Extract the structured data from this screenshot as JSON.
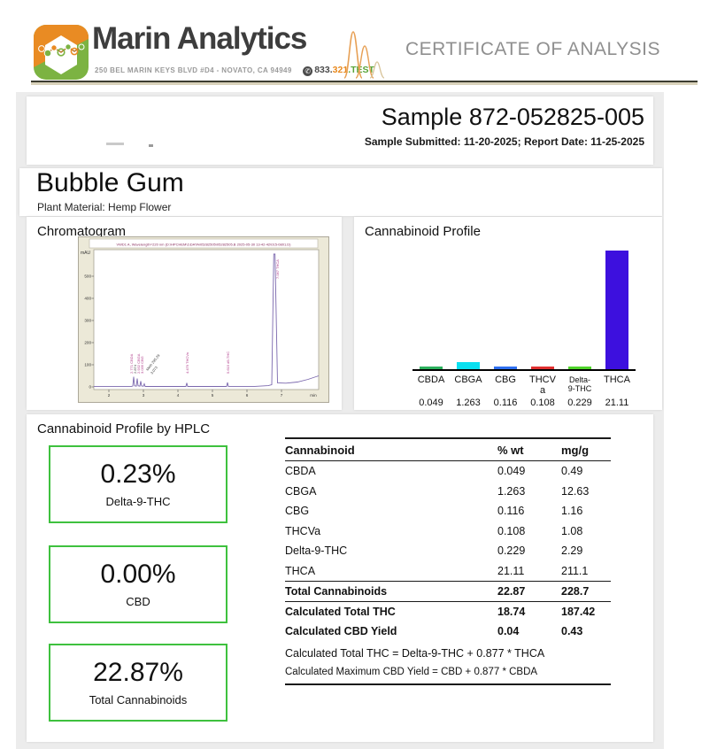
{
  "header": {
    "brand": "Marin Analytics",
    "address": "250 BEL MARIN KEYS BLVD #D4 - NOVATO, CA 94949",
    "phone": {
      "part1": "833.",
      "part2": "321",
      "part3": ".TEST"
    },
    "title": "CERTIFICATE OF ANALYSIS"
  },
  "sample": {
    "title": "Sample 872-052825-005",
    "meta": "Sample Submitted: 11-20-2025; Report Date: 11-25-2025"
  },
  "product": {
    "name": "Bubble Gum",
    "material": "Plant Material: Hemp Flower"
  },
  "chromatogram": {
    "section_title": "Chromatogram",
    "window_title": "VWD1 A, Wavelength=220 nm (D:\\HPCHEM\\1\\DATA\\05282505\\05282505.B 2025-05-30 13-42-42\\015-0801.D)",
    "y_label": "mAU",
    "y_ticks": [
      "500",
      "400",
      "300",
      "200",
      "100",
      "0"
    ],
    "x_ticks": [
      "2",
      "3",
      "4",
      "5",
      "6",
      "7"
    ],
    "x_unit": "min",
    "peak_labels": {
      "p1": "2.771 CBDA",
      "p2": "2.874",
      "p3": "2.932 CBGA",
      "p4": "3.035 CBG",
      "p5": "Meth 295.29",
      "p6": "3.073",
      "p7": "4.479 THCVa",
      "p8": "5.615 d9-THC",
      "p9": "7.067 THCA"
    }
  },
  "profile": {
    "section_title": "Cannabinoid Profile"
  },
  "chart_data": {
    "type": "bar",
    "title": "Cannabinoid Profile",
    "categories": [
      "CBDA",
      "CBGA",
      "CBG",
      "THCVa",
      "Delta-9-THC",
      "THCA"
    ],
    "values": [
      0.049,
      1.263,
      0.116,
      0.108,
      0.229,
      21.11
    ],
    "ylim": [
      0,
      21.11
    ],
    "xlabel": "",
    "ylabel": "% wt",
    "grid": false,
    "legend": false,
    "bar_colors": [
      "#2bb05c",
      "#0ae0f0",
      "#2e6ff0",
      "#e03030",
      "#4fd42a",
      "#3d10de"
    ],
    "display_labels": [
      "CBDA",
      "CBGA",
      "CBG",
      "THCV\na",
      "Delta-\n9-THC",
      "THCA"
    ],
    "display_values": [
      "0.049",
      "1.263",
      "0.116",
      "0.108",
      "0.229",
      "21.11"
    ]
  },
  "hplc": {
    "section_title": "Cannabinoid Profile by HPLC",
    "boxes": [
      {
        "value": "0.23%",
        "label": "Delta-9-THC"
      },
      {
        "value": "0.00%",
        "label": "CBD"
      },
      {
        "value": "22.87%",
        "label": "Total Cannabinoids"
      }
    ],
    "table": {
      "headers": [
        "Cannabinoid",
        "% wt",
        "mg/g"
      ],
      "rows": [
        {
          "name": "CBDA",
          "wt": "0.049",
          "mg": "0.49"
        },
        {
          "name": "CBGA",
          "wt": "1.263",
          "mg": "12.63"
        },
        {
          "name": "CBG",
          "wt": "0.116",
          "mg": "1.16"
        },
        {
          "name": "THCVa",
          "wt": "0.108",
          "mg": "1.08"
        },
        {
          "name": "Delta-9-THC",
          "wt": "0.229",
          "mg": "2.29"
        },
        {
          "name": "THCA",
          "wt": "21.11",
          "mg": "211.1"
        },
        {
          "name": "Total Cannabinoids",
          "wt": "22.87",
          "mg": "228.7"
        },
        {
          "name": "Calculated Total THC",
          "wt": "18.74",
          "mg": "187.42"
        },
        {
          "name": "Calculated CBD Yield",
          "wt": "0.04",
          "mg": "0.43"
        }
      ],
      "footnotes": [
        "Calculated Total THC = Delta-9-THC + 0.877 * THCA",
        "Calculated Maximum CBD Yield = CBD + 0.877 * CBDA"
      ]
    }
  }
}
